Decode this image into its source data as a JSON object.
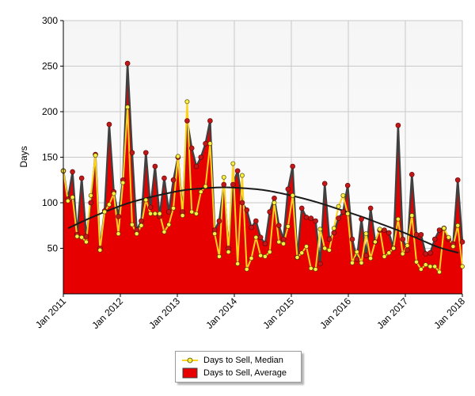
{
  "chart_data": {
    "type": "area",
    "ylabel": "Days",
    "xlabel": "",
    "title": "",
    "ylim": [
      0,
      300
    ],
    "yticks": [
      50,
      100,
      150,
      200,
      250,
      300
    ],
    "x_start": "Jan 2011",
    "x_end": "Jan 2018",
    "xticks": [
      "Jan 2011",
      "Jan 2012",
      "Jan 2013",
      "Jan 2014",
      "Jan 2015",
      "Jan 2016",
      "Jan 2017",
      "Jan 2018"
    ],
    "grid": true,
    "legend_position": "bottom",
    "series": [
      {
        "name": "Days to Sell, Average",
        "type": "area",
        "color": "#e60000",
        "line_color": "#404040",
        "marker_color": "#c01818",
        "values": [
          135,
          104,
          134,
          65,
          127,
          63,
          100,
          153,
          50,
          91,
          186,
          112,
          85,
          125,
          253,
          155,
          70,
          80,
          155,
          95,
          140,
          85,
          127,
          90,
          125,
          150,
          90,
          190,
          160,
          140,
          150,
          165,
          190,
          70,
          80,
          120,
          50,
          120,
          135,
          100,
          92,
          73,
          80,
          62,
          55,
          90,
          105,
          75,
          60,
          115,
          140,
          40,
          94,
          84,
          83,
          80,
          33,
          121,
          60,
          67,
          83,
          90,
          119,
          60,
          38,
          82,
          42,
          94,
          57,
          70,
          70,
          67,
          50,
          185,
          60,
          48,
          131,
          65,
          65,
          44,
          45,
          60,
          70,
          72,
          60,
          55,
          125,
          57
        ]
      },
      {
        "name": "Days to Sell, Median",
        "type": "line",
        "color": "#ffd21e",
        "marker_color": "#ffee44",
        "values": [
          135,
          102,
          106,
          63,
          62,
          57,
          108,
          152,
          48,
          90,
          98,
          110,
          66,
          122,
          205,
          76,
          66,
          75,
          103,
          88,
          88,
          88,
          68,
          76,
          94,
          151,
          86,
          211,
          90,
          88,
          112,
          118,
          165,
          66,
          41,
          128,
          46,
          143,
          33,
          130,
          27,
          39,
          62,
          42,
          41,
          46,
          100,
          57,
          55,
          74,
          108,
          40,
          45,
          52,
          28,
          27,
          71,
          50,
          48,
          72,
          96,
          108,
          88,
          34,
          46,
          34,
          66,
          39,
          57,
          71,
          41,
          45,
          50,
          82,
          44,
          53,
          86,
          35,
          27,
          32,
          30,
          30,
          24,
          72,
          62,
          52,
          75,
          30
        ]
      },
      {
        "name": "Trend",
        "type": "line",
        "color": "#1a1a1a",
        "values": [
          72,
          82,
          91,
          99,
          105,
          110,
          114,
          116,
          117,
          116,
          114,
          110,
          105,
          99,
          92,
          85,
          77,
          69,
          60,
          51,
          45
        ]
      }
    ]
  },
  "legend": {
    "median_label": "Days to Sell, Median",
    "average_label": "Days to Sell, Average"
  }
}
